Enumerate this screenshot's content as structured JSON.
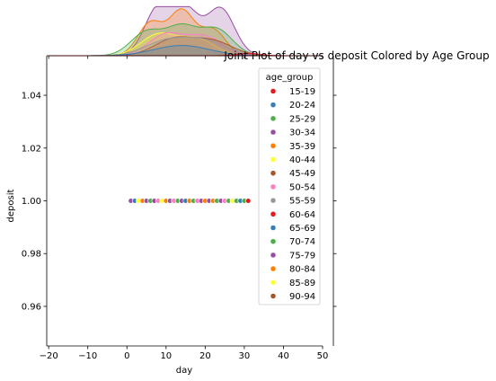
{
  "chart_data": {
    "type": "scatter",
    "title": "Joint Plot of day vs deposit Colored by Age Group",
    "xlabel": "day",
    "ylabel": "deposit",
    "xlim": [
      -20.5,
      50
    ],
    "ylim": [
      0.945,
      1.055
    ],
    "xticks": [
      "-20",
      "-10",
      "0",
      "10",
      "20",
      "30",
      "40",
      "50"
    ],
    "yticks": [
      "0.96",
      "0.98",
      "1.00",
      "1.02",
      "1.04"
    ],
    "legend": {
      "title": "age_group",
      "placement": "upper-right",
      "entries": [
        {
          "label": "15-19",
          "color": "#e41a1c"
        },
        {
          "label": "20-24",
          "color": "#377eb8"
        },
        {
          "label": "25-29",
          "color": "#4daf4a"
        },
        {
          "label": "30-34",
          "color": "#984ea3"
        },
        {
          "label": "35-39",
          "color": "#ff7f00"
        },
        {
          "label": "40-44",
          "color": "#ffff33"
        },
        {
          "label": "45-49",
          "color": "#a65628"
        },
        {
          "label": "50-54",
          "color": "#f781bf"
        },
        {
          "label": "55-59",
          "color": "#999999"
        },
        {
          "label": "60-64",
          "color": "#e41a1c"
        },
        {
          "label": "65-69",
          "color": "#377eb8"
        },
        {
          "label": "70-74",
          "color": "#4daf4a"
        },
        {
          "label": "75-79",
          "color": "#984ea3"
        },
        {
          "label": "80-84",
          "color": "#ff7f00"
        },
        {
          "label": "85-89",
          "color": "#ffff33"
        },
        {
          "label": "90-94",
          "color": "#a65628"
        }
      ]
    },
    "points": [
      {
        "x": 1,
        "y": 1,
        "color": "#984ea3"
      },
      {
        "x": 2,
        "y": 1,
        "color": "#377eb8"
      },
      {
        "x": 3,
        "y": 1,
        "color": "#ffff33"
      },
      {
        "x": 4,
        "y": 1,
        "color": "#ff7f00"
      },
      {
        "x": 5,
        "y": 1,
        "color": "#984ea3"
      },
      {
        "x": 6,
        "y": 1,
        "color": "#4daf4a"
      },
      {
        "x": 7,
        "y": 1,
        "color": "#984ea3"
      },
      {
        "x": 8,
        "y": 1,
        "color": "#f781bf"
      },
      {
        "x": 9,
        "y": 1,
        "color": "#ffff33"
      },
      {
        "x": 10,
        "y": 1,
        "color": "#ff7f00"
      },
      {
        "x": 11,
        "y": 1,
        "color": "#984ea3"
      },
      {
        "x": 12,
        "y": 1,
        "color": "#f781bf"
      },
      {
        "x": 13,
        "y": 1,
        "color": "#4daf4a"
      },
      {
        "x": 14,
        "y": 1,
        "color": "#984ea3"
      },
      {
        "x": 15,
        "y": 1,
        "color": "#377eb8"
      },
      {
        "x": 16,
        "y": 1,
        "color": "#ff7f00"
      },
      {
        "x": 17,
        "y": 1,
        "color": "#4daf4a"
      },
      {
        "x": 18,
        "y": 1,
        "color": "#f781bf"
      },
      {
        "x": 19,
        "y": 1,
        "color": "#984ea3"
      },
      {
        "x": 20,
        "y": 1,
        "color": "#ff7f00"
      },
      {
        "x": 21,
        "y": 1,
        "color": "#984ea3"
      },
      {
        "x": 22,
        "y": 1,
        "color": "#ff7f00"
      },
      {
        "x": 23,
        "y": 1,
        "color": "#4daf4a"
      },
      {
        "x": 24,
        "y": 1,
        "color": "#984ea3"
      },
      {
        "x": 25,
        "y": 1,
        "color": "#f781bf"
      },
      {
        "x": 26,
        "y": 1,
        "color": "#4daf4a"
      },
      {
        "x": 27,
        "y": 1,
        "color": "#ffff33"
      },
      {
        "x": 28,
        "y": 1,
        "color": "#4daf4a"
      },
      {
        "x": 29,
        "y": 1,
        "color": "#377eb8"
      },
      {
        "x": 30,
        "y": 1,
        "color": "#4daf4a"
      },
      {
        "x": 31,
        "y": 1,
        "color": "#e41a1c"
      }
    ],
    "marginal_x": {
      "type": "kde",
      "series": [
        {
          "label": "30-34",
          "color": "#984ea3",
          "peaks": [
            [
              8,
              1.0
            ],
            [
              15,
              0.95
            ],
            [
              24,
              1.0
            ]
          ],
          "width": 3.5
        },
        {
          "label": "35-39",
          "color": "#ff7f00",
          "peaks": [
            [
              6,
              0.7
            ],
            [
              14,
              0.95
            ],
            [
              22,
              0.55
            ]
          ],
          "width": 3.2
        },
        {
          "label": "25-29",
          "color": "#4daf4a",
          "peaks": [
            [
              5,
              0.5
            ],
            [
              14,
              0.6
            ],
            [
              23,
              0.55
            ]
          ],
          "width": 4.0
        },
        {
          "label": "40-44",
          "color": "#ffff33",
          "peaks": [
            [
              8,
              0.45
            ],
            [
              18,
              0.35
            ]
          ],
          "width": 4.5
        },
        {
          "label": "50-54",
          "color": "#f781bf",
          "peaks": [
            [
              10,
              0.45
            ],
            [
              20,
              0.4
            ]
          ],
          "width": 4.5
        },
        {
          "label": "45-49",
          "color": "#a65628",
          "peaks": [
            [
              12,
              0.35
            ],
            [
              22,
              0.3
            ]
          ],
          "width": 5.0
        },
        {
          "label": "55-59",
          "color": "#999999",
          "peaks": [
            [
              10,
              0.3
            ],
            [
              20,
              0.3
            ]
          ],
          "width": 5.5
        },
        {
          "label": "20-24",
          "color": "#377eb8",
          "peaks": [
            [
              14,
              0.22
            ]
          ],
          "width": 7.0
        },
        {
          "label": "15-19",
          "color": "#e41a1c",
          "peaks": [
            [
              31,
              0.05
            ]
          ],
          "width": 3.0
        }
      ]
    }
  }
}
